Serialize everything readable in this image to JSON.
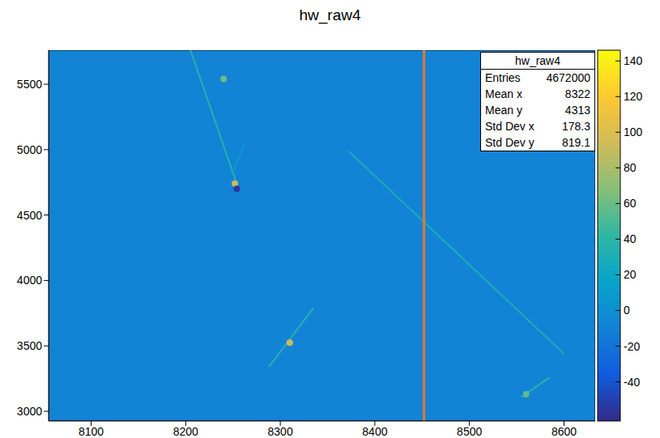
{
  "chart_data": {
    "type": "heatmap",
    "title": "hw_raw4",
    "xlim": [
      8055,
      8633
    ],
    "ylim": [
      2926,
      5760
    ],
    "xticks": [
      8100,
      8200,
      8300,
      8400,
      8500,
      8600
    ],
    "yticks": [
      3000,
      3500,
      4000,
      4500,
      5000,
      5500
    ],
    "background": -8,
    "segments": [
      {
        "from": [
          8205,
          5760
        ],
        "to": [
          8253,
          4760
        ],
        "value": 35
      },
      {
        "from": [
          8250,
          4820
        ],
        "to": [
          8262,
          5050
        ],
        "value": 10
      },
      {
        "from": [
          8372,
          4990
        ],
        "to": [
          8600,
          3440
        ],
        "value": 30
      },
      {
        "from": [
          8288,
          3340
        ],
        "to": [
          8335,
          3790
        ],
        "value": 35
      },
      {
        "from": [
          8555,
          3110
        ],
        "to": [
          8585,
          3260
        ],
        "value": 40
      }
    ],
    "spots": [
      {
        "x": 8240,
        "y": 5540,
        "value": 60
      },
      {
        "x": 8252,
        "y": 4740,
        "value": 90
      },
      {
        "x": 8254,
        "y": 4700,
        "value": -55
      },
      {
        "x": 8310,
        "y": 3525,
        "value": 95
      },
      {
        "x": 8560,
        "y": 3130,
        "value": 55
      }
    ],
    "vline": {
      "x": 8452,
      "color": "#e8772e"
    },
    "colorbar": {
      "range": [
        -62,
        146
      ],
      "ticks": [
        -40,
        -20,
        0,
        20,
        40,
        60,
        80,
        100,
        120,
        140
      ]
    },
    "stats": {
      "title": "hw_raw4",
      "rows": [
        [
          "Entries",
          4672000
        ],
        [
          "Mean x",
          8322
        ],
        [
          "Mean y",
          4313
        ],
        [
          "Std Dev x",
          178.3
        ],
        [
          "Std Dev y",
          819.1
        ]
      ]
    }
  }
}
